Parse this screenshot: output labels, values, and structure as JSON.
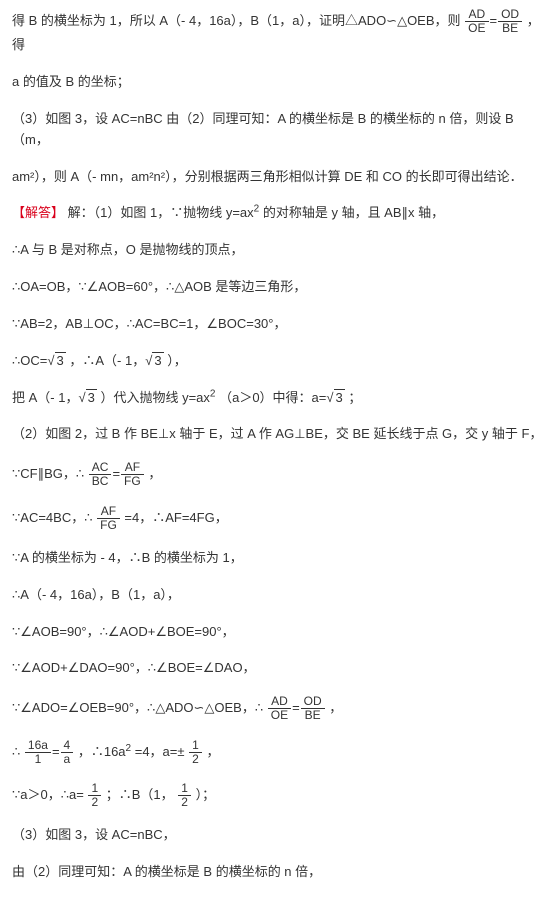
{
  "text_color": "#333333",
  "accent_color": "#d9001b",
  "background_color": "#ffffff",
  "font_size_pt": 10,
  "paragraphs": {
    "p1a": "得 B 的横坐标为 1，所以 A（- 4，16a），B（1，a），证明△ADO∽△OEB，则",
    "p1b": "，得",
    "p2": "a 的值及 B 的坐标；",
    "p3": "（3）如图 3，设 AC=nBC 由（2）同理可知：A 的横坐标是 B 的横坐标的 n 倍，则设 B（m，",
    "p4": "am²），则 A（- mn，am²n²），分别根据两三角形相似计算 DE 和 CO 的长即可得出结论．",
    "p5a": "【解答】",
    "p5b": "解：（1）如图 1，∵抛物线 y=ax",
    "p5c": "的对称轴是 y 轴，且 AB∥x 轴，",
    "p6": "∴A 与 B 是对称点，O 是抛物线的顶点，",
    "p7": "∴OA=OB，∵∠AOB=60°，∴△AOB 是等边三角形，",
    "p8": "∵AB=2，AB⊥OC，∴AC=BC=1，∠BOC=30°，",
    "p9a": "∴OC=",
    "p9b": "，∴A（- 1，",
    "p9c": "），",
    "p10a": "把 A（- 1，",
    "p10b": "）代入抛物线 y=ax",
    "p10c": "（a＞0）中得：a=",
    "p10d": "；",
    "p11": "（2）如图 2，过 B 作 BE⊥x 轴于 E，过 A 作 AG⊥BE，交 BE 延长线于点 G，交 y 轴于 F，",
    "p12a": "∵CF∥BG，∴",
    "p12b": "，",
    "p13a": "∵AC=4BC，∴",
    "p13b": "=4，∴AF=4FG，",
    "p14": "∵A 的横坐标为 - 4，∴B 的横坐标为 1，",
    "p15": "∴A（- 4，16a），B（1，a），",
    "p16": "∵∠AOB=90°，∴∠AOD+∠BOE=90°，",
    "p17": "∵∠AOD+∠DAO=90°，∴∠BOE=∠DAO，",
    "p18a": "∵∠ADO=∠OEB=90°，∴△ADO∽△OEB，∴",
    "p18b": "，",
    "p19a": "∴",
    "p19b": "，∴16a",
    "p19c": "=4，a=±",
    "p19d": "，",
    "p20a": "∵a＞0，∴a=",
    "p20b": "；∴B（1，",
    "p20c": "）；",
    "p21": "（3）如图 3，设 AC=nBC，",
    "p22": "由（2）同理可知：A 的横坐标是 B 的横坐标的 n 倍，"
  },
  "fractions": {
    "f1": {
      "num": "AD",
      "den": "OE"
    },
    "f2": {
      "num": "OD",
      "den": "BE"
    },
    "f3": {
      "num": "AC",
      "den": "BC"
    },
    "f4": {
      "num": "AF",
      "den": "FG"
    },
    "f5": {
      "num": "AF",
      "den": "FG"
    },
    "f6": {
      "num": "AD",
      "den": "OE"
    },
    "f7": {
      "num": "OD",
      "den": "BE"
    },
    "f8": {
      "num": "16a",
      "den": "1"
    },
    "f9": {
      "num": "4",
      "den": "a"
    },
    "f10": {
      "num": "1",
      "den": "2"
    },
    "f11": {
      "num": "1",
      "den": "2"
    },
    "f12": {
      "num": "1",
      "den": "2"
    }
  },
  "radicals": {
    "r1": "3",
    "r2": "3",
    "r3": "3",
    "r4": "3"
  }
}
